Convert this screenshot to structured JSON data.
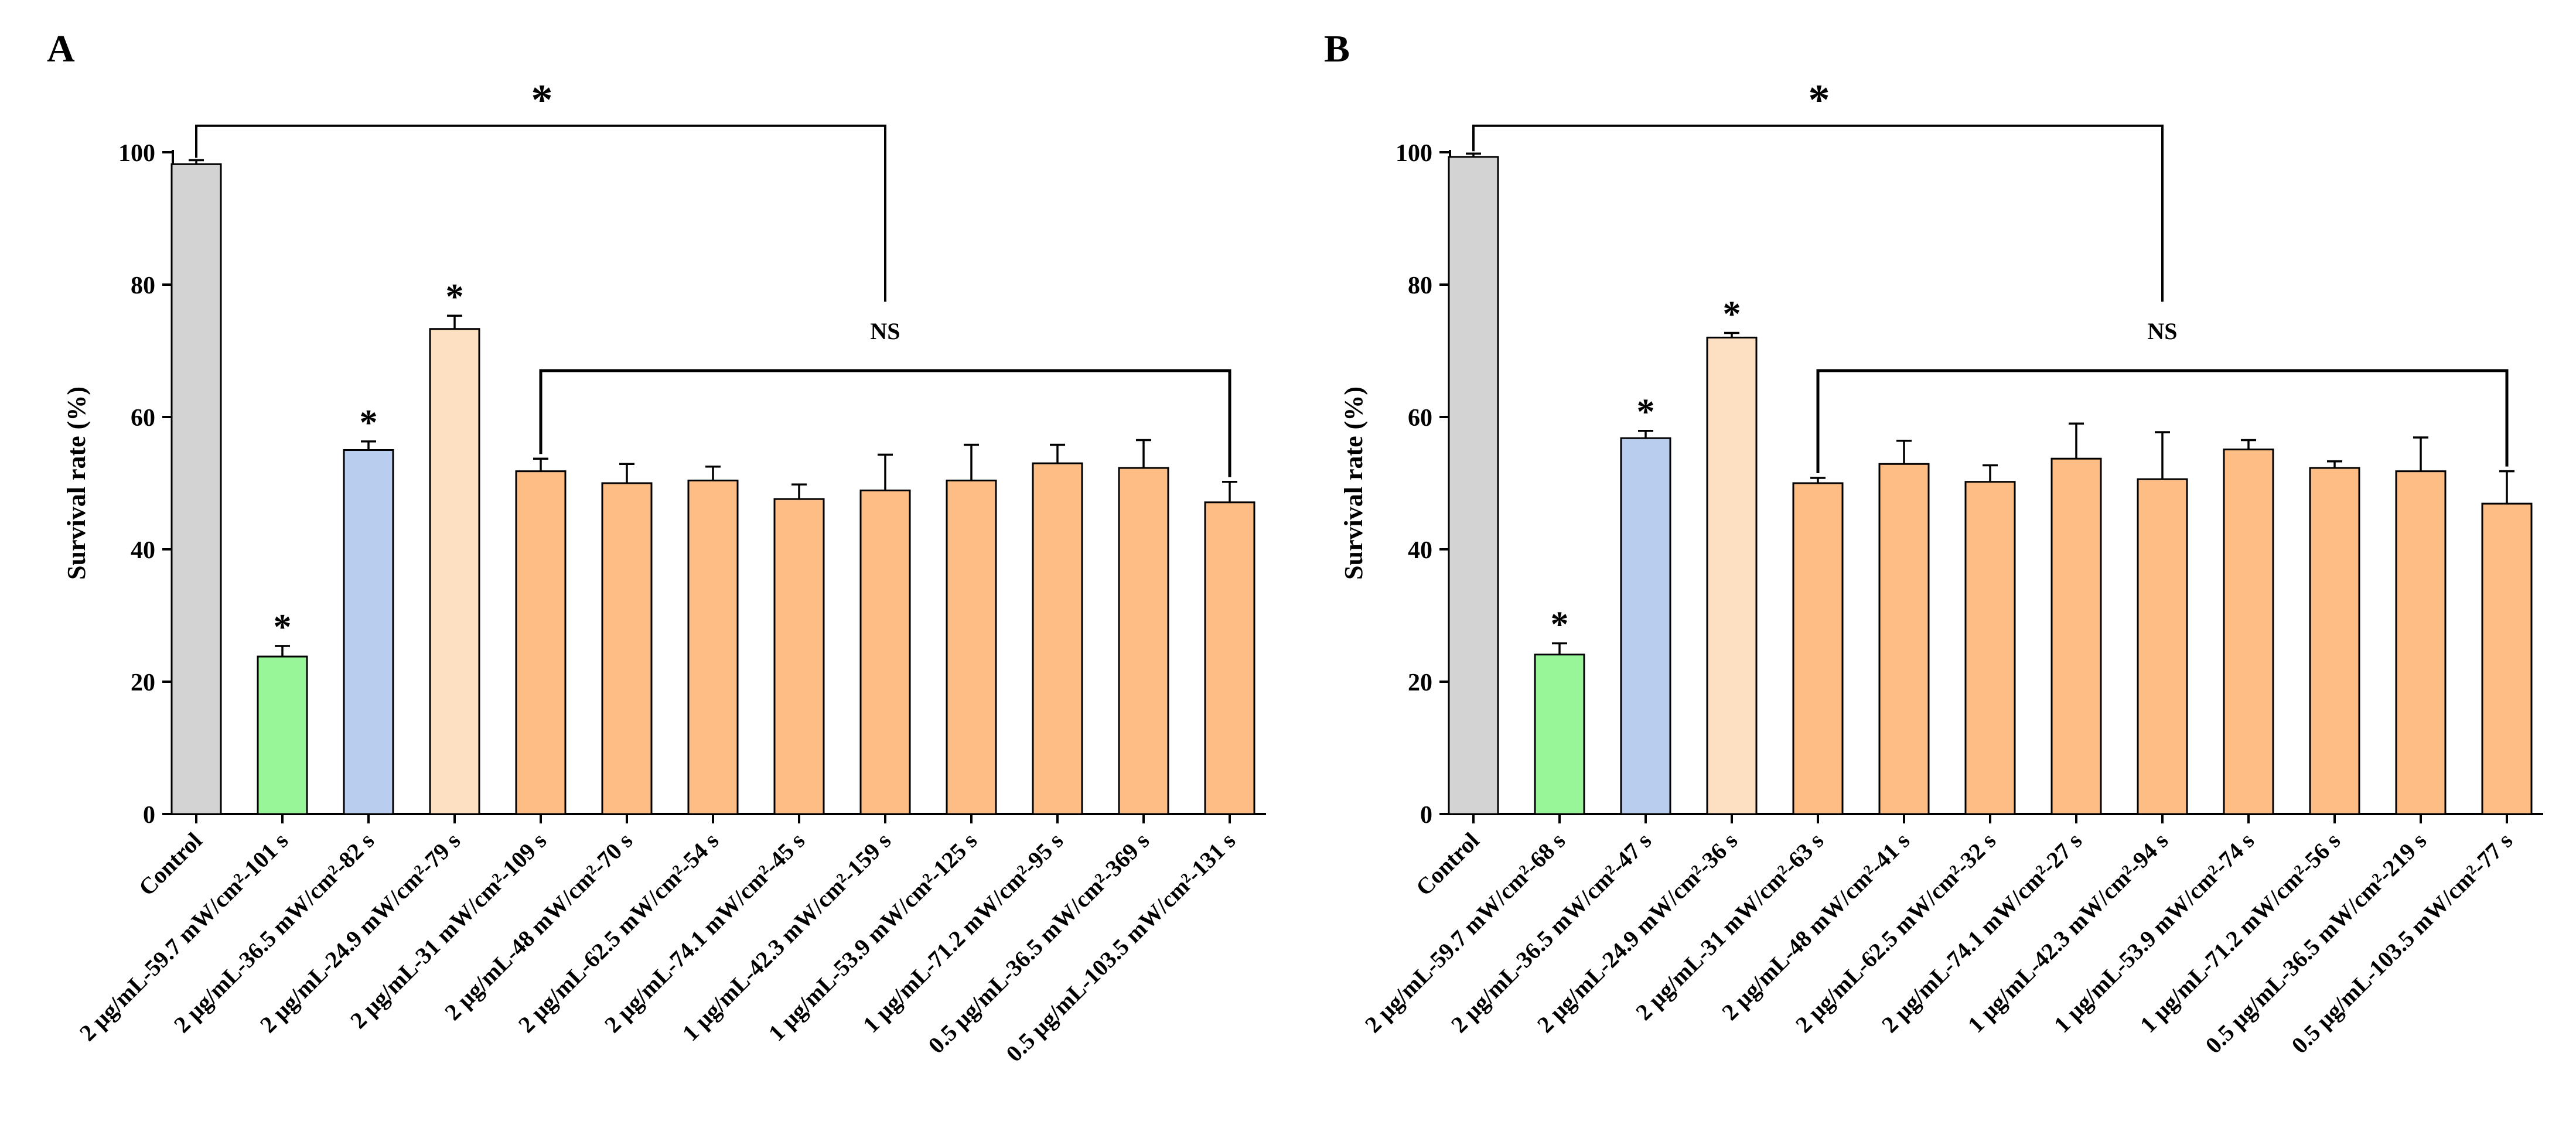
{
  "figure": {
    "panel_labels": [
      "A",
      "B"
    ]
  },
  "colors": {
    "control": "#d3d3d3",
    "low": "#98f598",
    "mid": "#b9cdef",
    "high": "#fde0c2",
    "treatment": "#fdbd84",
    "stroke": "#000000"
  },
  "chart_data": [
    {
      "type": "bar",
      "panel": "A",
      "ylabel": "Survival rate (%)",
      "xlabel": "",
      "ylim": [
        0,
        100
      ],
      "yticks": [
        0,
        20,
        40,
        60,
        80,
        100
      ],
      "categories": [
        "Control",
        "2 μg/mL-59.7 mW/cm²-101 s",
        "2 μg/mL-36.5 mW/cm²-82 s",
        "2 μg/mL-24.9 mW/cm²-79 s",
        "2 μg/mL-31 mW/cm²-109 s",
        "2 μg/mL-48 mW/cm²-70 s",
        "2 μg/mL-62.5 mW/cm²-54 s",
        "2 μg/mL-74.1 mW/cm²-45 s",
        "1 μg/mL-42.3 mW/cm²-159 s",
        "1 μg/mL-53.9 mW/cm²-125 s",
        "1 μg/mL-71.2 mW/cm²-95 s",
        "0.5 μg/mL-36.5 mW/cm²-369 s",
        "0.5 μg/mL-103.5 mW/cm²-131 s"
      ],
      "values": [
        98.2,
        23.8,
        55.0,
        73.3,
        51.8,
        50.0,
        50.4,
        47.6,
        48.9,
        50.4,
        53.0,
        52.3,
        47.1
      ],
      "errors": [
        0.6,
        1.6,
        1.3,
        2.0,
        1.9,
        2.9,
        2.1,
        2.2,
        5.4,
        5.4,
        2.8,
        4.2,
        3.1
      ],
      "colors": [
        "control",
        "low",
        "mid",
        "high",
        "treatment",
        "treatment",
        "treatment",
        "treatment",
        "treatment",
        "treatment",
        "treatment",
        "treatment",
        "treatment"
      ],
      "star_labels": [
        "",
        "*",
        "*",
        "*",
        "",
        "",
        "",
        "",
        "",
        "",
        "",
        "",
        ""
      ],
      "top_bracket": {
        "label": "*",
        "from": 0,
        "to": 8,
        "y": 104
      },
      "ns_bracket": {
        "label": "NS",
        "from": 4,
        "to": 12,
        "y": 67,
        "label_y": 73,
        "drop_to": 8
      }
    },
    {
      "type": "bar",
      "panel": "B",
      "ylabel": "Survival rate (%)",
      "xlabel": "",
      "ylim": [
        0,
        100
      ],
      "yticks": [
        0,
        20,
        40,
        60,
        80,
        100
      ],
      "categories": [
        "Control",
        "2 μg/mL-59.7 mW/cm²-68 s",
        "2 μg/mL-36.5 mW/cm²-47 s",
        "2 μg/mL-24.9 mW/cm²-36 s",
        "2 μg/mL-31 mW/cm²-63 s",
        "2 μg/mL-48 mW/cm²-41 s",
        "2 μg/mL-62.5 mW/cm²-32 s",
        "2 μg/mL-74.1 mW/cm²-27 s",
        "1 μg/mL-42.3 mW/cm²-94 s",
        "1 μg/mL-53.9 mW/cm²-74 s",
        "1 μg/mL-71.2 mW/cm²-56 s",
        "0.5 μg/mL-36.5 mW/cm²-219 s",
        "0.5 μg/mL-103.5 mW/cm²-77 s"
      ],
      "values": [
        99.3,
        24.1,
        56.8,
        72.0,
        50.0,
        52.9,
        50.2,
        53.7,
        50.6,
        55.1,
        52.3,
        51.8,
        46.9
      ],
      "errors": [
        0.5,
        1.7,
        1.1,
        0.7,
        0.8,
        3.5,
        2.5,
        5.3,
        7.1,
        1.4,
        1.0,
        5.1,
        4.9
      ],
      "colors": [
        "control",
        "low",
        "mid",
        "high",
        "treatment",
        "treatment",
        "treatment",
        "treatment",
        "treatment",
        "treatment",
        "treatment",
        "treatment",
        "treatment"
      ],
      "star_labels": [
        "",
        "*",
        "*",
        "*",
        "",
        "",
        "",
        "",
        "",
        "",
        "",
        "",
        ""
      ],
      "top_bracket": {
        "label": "*",
        "from": 0,
        "to": 8,
        "y": 104
      },
      "ns_bracket": {
        "label": "NS",
        "from": 4,
        "to": 12,
        "y": 67,
        "label_y": 73,
        "drop_to": 8
      }
    }
  ]
}
